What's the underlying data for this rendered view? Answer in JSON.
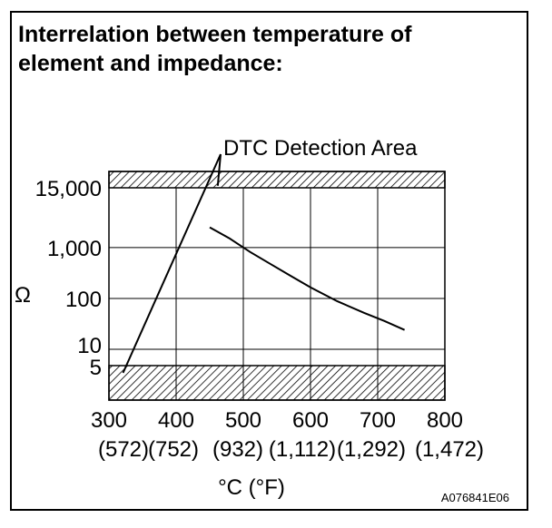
{
  "title_line1": "Interrelation between temperature of",
  "title_line2": "element and impedance:",
  "figure_code": "A076841E06",
  "chart_data": {
    "type": "line",
    "xlabel": "°C (°F)",
    "ylabel": "Ω",
    "xlim": [
      300,
      800
    ],
    "x_ticks": [
      {
        "value": 300,
        "label": "300",
        "alt": "(572)"
      },
      {
        "value": 400,
        "label": "400",
        "alt": "(752)"
      },
      {
        "value": 500,
        "label": "500",
        "alt": "(932)"
      },
      {
        "value": 600,
        "label": "600",
        "alt": "(1,112)"
      },
      {
        "value": 700,
        "label": "700",
        "alt": "(1,292)"
      },
      {
        "value": 800,
        "label": "800",
        "alt": "(1,472)"
      }
    ],
    "y_ticks": [
      {
        "value": 5,
        "label": "5"
      },
      {
        "value": 10,
        "label": "10"
      },
      {
        "value": 100,
        "label": "100"
      },
      {
        "value": 1000,
        "label": "1,000"
      },
      {
        "value": 15000,
        "label": "15,000"
      }
    ],
    "grid": true,
    "series": [
      {
        "x": [
          450,
          480,
          510,
          540,
          570,
          600,
          640,
          680,
          710,
          740
        ],
        "y": [
          2500,
          1500,
          820,
          480,
          280,
          165,
          88,
          52,
          36,
          24
        ]
      }
    ],
    "detection_areas": [
      {
        "from": 15000,
        "to": 23000
      },
      {
        "from": 5,
        "to": 1.2
      }
    ],
    "annotation": "DTC Detection Area",
    "annotation_lines": [
      {
        "x": 321,
        "y": 4.2
      },
      {
        "x": 462,
        "y": 16000
      }
    ]
  }
}
